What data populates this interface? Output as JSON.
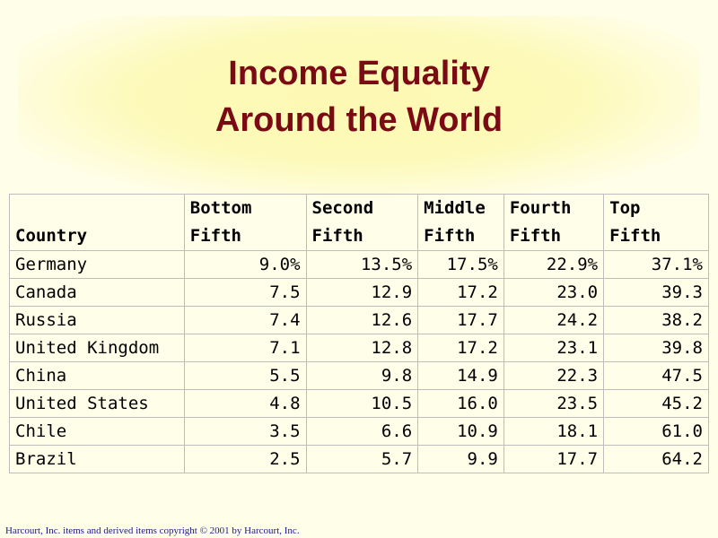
{
  "title": {
    "line1": "Income Equality",
    "line2": "Around the World"
  },
  "table": {
    "headers": {
      "country": "Country",
      "bottom": [
        "Bottom",
        "Fifth"
      ],
      "second": [
        "Second",
        "Fifth"
      ],
      "middle": [
        "Middle",
        "Fifth"
      ],
      "fourth": [
        "Fourth",
        "Fifth"
      ],
      "top": [
        "Top",
        "Fifth"
      ]
    },
    "rows": [
      {
        "country": "Germany",
        "values": [
          "9.0%",
          "13.5%",
          "17.5%",
          "22.9%",
          "37.1%"
        ]
      },
      {
        "country": "Canada",
        "values": [
          "7.5",
          "12.9",
          "17.2",
          "23.0",
          "39.3"
        ]
      },
      {
        "country": "Russia",
        "values": [
          "7.4",
          "12.6",
          "17.7",
          "24.2",
          "38.2"
        ]
      },
      {
        "country": "United Kingdom",
        "values": [
          "7.1",
          "12.8",
          "17.2",
          "23.1",
          "39.8"
        ]
      },
      {
        "country": "China",
        "values": [
          "5.5",
          "9.8",
          "14.9",
          "22.3",
          "47.5"
        ]
      },
      {
        "country": "United States",
        "values": [
          "4.8",
          "10.5",
          "16.0",
          "23.5",
          "45.2"
        ]
      },
      {
        "country": "Chile",
        "values": [
          "3.5",
          "6.6",
          "10.9",
          "18.1",
          "61.0"
        ]
      },
      {
        "country": "Brazil",
        "values": [
          "2.5",
          "5.7",
          "9.9",
          "17.7",
          "64.2"
        ]
      }
    ]
  },
  "footer": "Harcourt, Inc. items and derived items copyright © 2001 by Harcourt, Inc.",
  "colors": {
    "background": "#fffee8",
    "title": "#7a0a14",
    "footer": "#1a1a8a"
  }
}
